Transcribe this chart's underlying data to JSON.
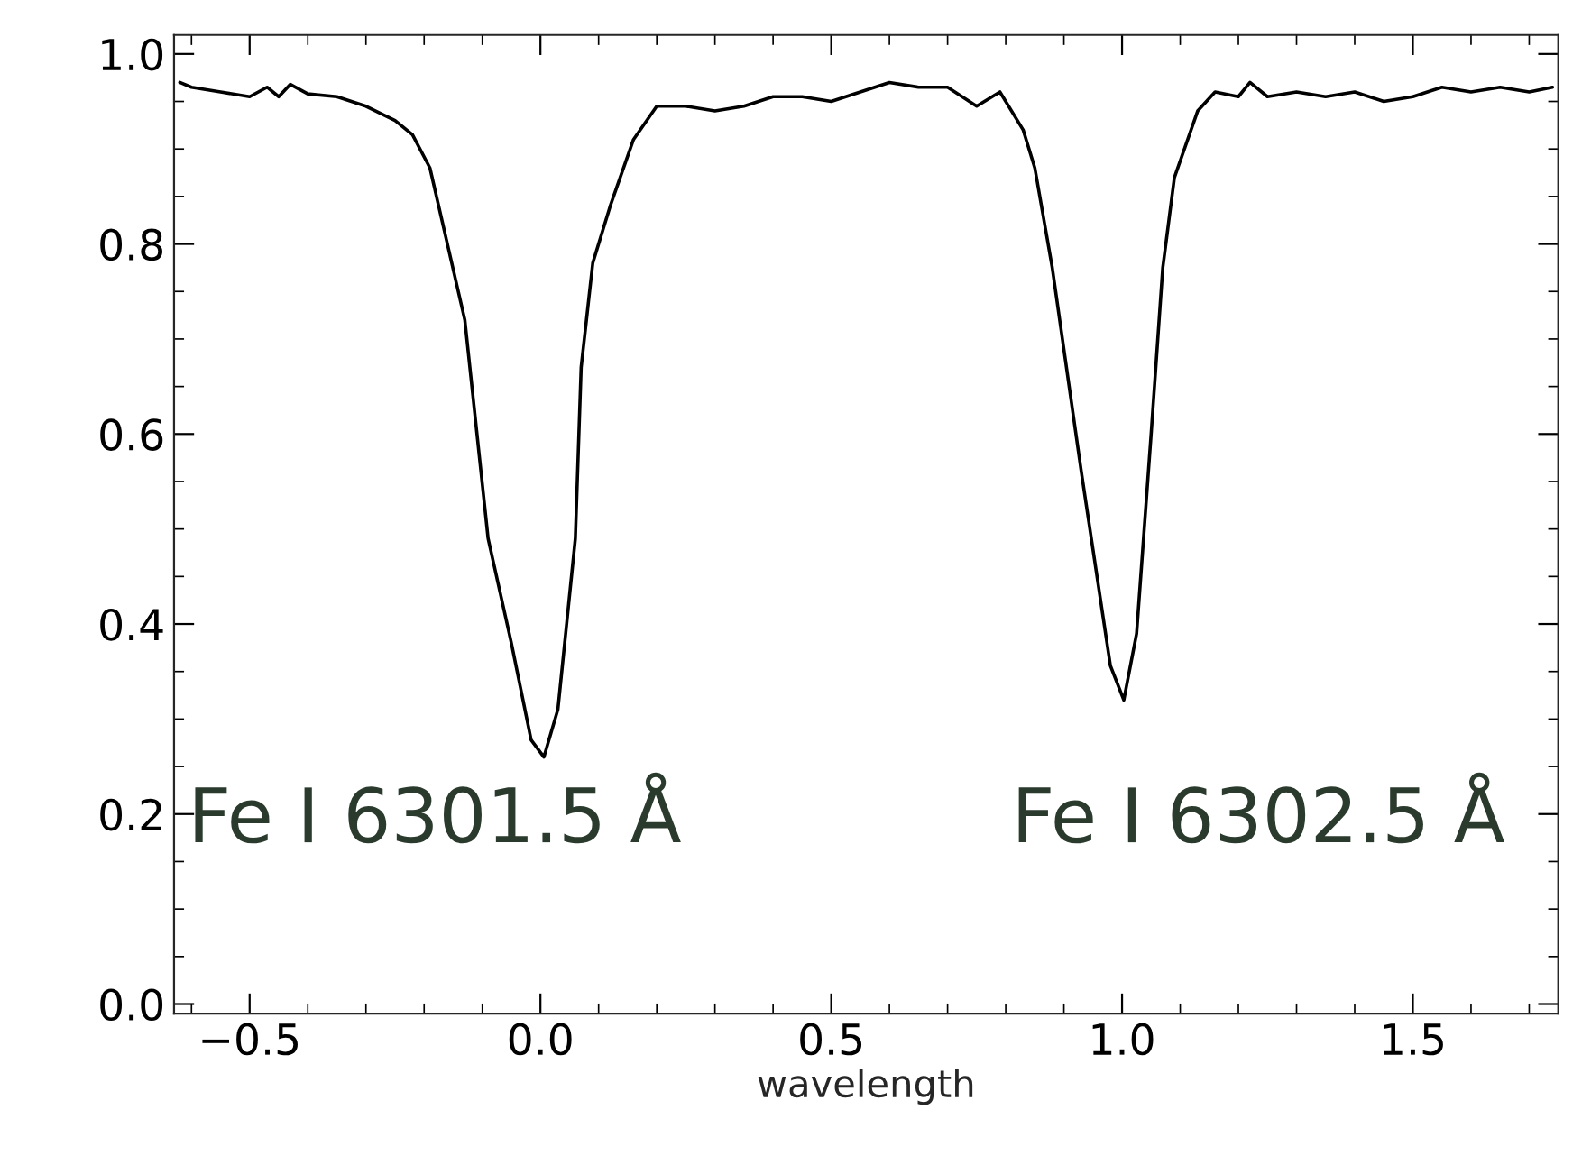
{
  "chart_data": {
    "type": "line",
    "xlabel": "wavelength",
    "xlim": [
      -0.63,
      1.75
    ],
    "ylim": [
      -0.01,
      1.02
    ],
    "xticks": [
      {
        "value": -0.5,
        "label": "−0.5"
      },
      {
        "value": 0.0,
        "label": "0.0"
      },
      {
        "value": 0.5,
        "label": "0.5"
      },
      {
        "value": 1.0,
        "label": "1.0"
      },
      {
        "value": 1.5,
        "label": "1.5"
      }
    ],
    "yticks": [
      {
        "value": 0.0,
        "label": "0.0"
      },
      {
        "value": 0.2,
        "label": "0.2"
      },
      {
        "value": 0.4,
        "label": "0.4"
      },
      {
        "value": 0.6,
        "label": "0.6"
      },
      {
        "value": 0.8,
        "label": "0.8"
      },
      {
        "value": 1.0,
        "label": "1.0"
      }
    ],
    "grid": false,
    "legend": false,
    "marker": "none",
    "line_style": "solid",
    "annotations": [
      "Fe I 6301.5 Å",
      "Fe I 6302.5 Å"
    ],
    "series": [
      {
        "color": "#000000",
        "x": [
          -0.62,
          -0.6,
          -0.55,
          -0.5,
          -0.47,
          -0.45,
          -0.43,
          -0.4,
          -0.35,
          -0.3,
          -0.25,
          -0.22,
          -0.19,
          -0.13,
          -0.09,
          -0.05,
          -0.016,
          0.006,
          0.03,
          0.06,
          0.07,
          0.09,
          0.12,
          0.16,
          0.2,
          0.25,
          0.3,
          0.35,
          0.4,
          0.45,
          0.5,
          0.55,
          0.6,
          0.65,
          0.7,
          0.75,
          0.79,
          0.83,
          0.85,
          0.87,
          0.88,
          0.93,
          0.98,
          1.003,
          1.025,
          1.05,
          1.07,
          1.09,
          1.13,
          1.16,
          1.2,
          1.22,
          1.25,
          1.3,
          1.35,
          1.4,
          1.45,
          1.5,
          1.55,
          1.6,
          1.65,
          1.7,
          1.74
        ],
        "values": [
          0.97,
          0.965,
          0.96,
          0.955,
          0.965,
          0.955,
          0.968,
          0.958,
          0.955,
          0.945,
          0.93,
          0.915,
          0.88,
          0.72,
          0.49,
          0.38,
          0.278,
          0.26,
          0.31,
          0.49,
          0.67,
          0.78,
          0.84,
          0.91,
          0.945,
          0.945,
          0.94,
          0.945,
          0.955,
          0.955,
          0.95,
          0.96,
          0.97,
          0.965,
          0.965,
          0.945,
          0.96,
          0.92,
          0.88,
          0.81,
          0.775,
          0.56,
          0.356,
          0.32,
          0.39,
          0.6,
          0.775,
          0.87,
          0.94,
          0.96,
          0.955,
          0.97,
          0.955,
          0.96,
          0.955,
          0.96,
          0.95,
          0.955,
          0.965,
          0.96,
          0.965,
          0.96,
          0.965
        ]
      }
    ]
  }
}
